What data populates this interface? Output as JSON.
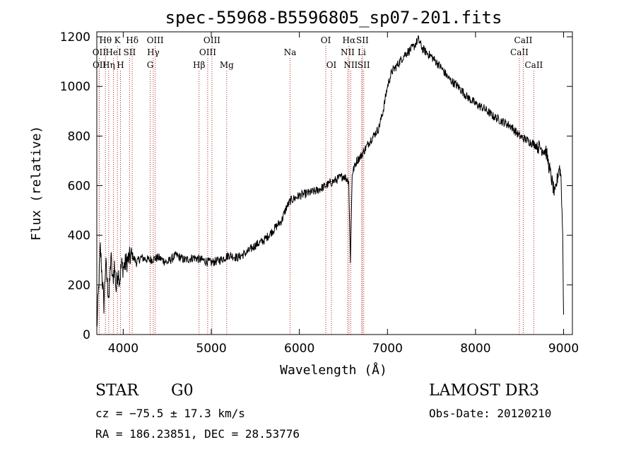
{
  "chart_data": {
    "type": "line",
    "title": "spec-55968-B5596805_sp07-201.fits",
    "xlabel": "Wavelength (Å)",
    "ylabel": "Flux (relative)",
    "xlim": [
      3700,
      9100
    ],
    "ylim": [
      0,
      1220
    ],
    "xticks": [
      4000,
      5000,
      6000,
      7000,
      8000,
      9000
    ],
    "yticks": [
      0,
      200,
      400,
      600,
      800,
      1000,
      1200
    ],
    "line_color": "#000000",
    "marker_color": "#b22222",
    "spectrum": {
      "name": "flux",
      "x": [
        3700,
        3720,
        3740,
        3760,
        3780,
        3800,
        3820,
        3840,
        3860,
        3880,
        3900,
        3920,
        3940,
        3960,
        3980,
        4000,
        4050,
        4100,
        4150,
        4200,
        4300,
        4400,
        4500,
        4600,
        4700,
        4800,
        4900,
        5000,
        5100,
        5200,
        5300,
        5400,
        5500,
        5600,
        5700,
        5800,
        5850,
        5900,
        6000,
        6100,
        6200,
        6300,
        6400,
        6500,
        6560,
        6580,
        6600,
        6650,
        6700,
        6800,
        6900,
        6950,
        7000,
        7050,
        7100,
        7200,
        7300,
        7350,
        7400,
        7500,
        7600,
        7700,
        7800,
        7900,
        8000,
        8100,
        8200,
        8300,
        8400,
        8500,
        8600,
        8700,
        8800,
        8850,
        8900,
        8950,
        8970,
        8990,
        9000
      ],
      "y": [
        20,
        180,
        350,
        230,
        120,
        290,
        200,
        150,
        320,
        210,
        280,
        180,
        260,
        220,
        280,
        270,
        300,
        320,
        290,
        310,
        300,
        310,
        290,
        320,
        300,
        310,
        300,
        290,
        300,
        320,
        310,
        330,
        360,
        380,
        420,
        460,
        510,
        540,
        560,
        570,
        580,
        600,
        620,
        640,
        620,
        300,
        650,
        700,
        720,
        780,
        830,
        900,
        1000,
        1060,
        1080,
        1130,
        1160,
        1190,
        1150,
        1120,
        1080,
        1030,
        1000,
        960,
        930,
        910,
        880,
        860,
        840,
        800,
        780,
        760,
        740,
        650,
        560,
        680,
        640,
        400,
        80
      ]
    },
    "spectral_lines": [
      {
        "label": "Hθ",
        "wavelength": 3798,
        "row": 1
      },
      {
        "label": "OII",
        "wavelength": 3727,
        "row": 2
      },
      {
        "label": "OII",
        "wavelength": 3729,
        "row": 3
      },
      {
        "label": "Hη",
        "wavelength": 3835,
        "row": 3
      },
      {
        "label": "HeI",
        "wavelength": 3889,
        "row": 2
      },
      {
        "label": "K",
        "wavelength": 3934,
        "row": 1
      },
      {
        "label": "H",
        "wavelength": 3969,
        "row": 3
      },
      {
        "label": "SII",
        "wavelength": 4072,
        "row": 2
      },
      {
        "label": "Hδ",
        "wavelength": 4102,
        "row": 1
      },
      {
        "label": "G",
        "wavelength": 4306,
        "row": 3
      },
      {
        "label": "Hγ",
        "wavelength": 4341,
        "row": 2
      },
      {
        "label": "OIII",
        "wavelength": 4363,
        "row": 1
      },
      {
        "label": "Hβ",
        "wavelength": 4861,
        "row": 3
      },
      {
        "label": "OIII",
        "wavelength": 4959,
        "row": 2
      },
      {
        "label": "OIII",
        "wavelength": 5007,
        "row": 1
      },
      {
        "label": "Mg",
        "wavelength": 5175,
        "row": 3
      },
      {
        "label": "Na",
        "wavelength": 5894,
        "row": 2
      },
      {
        "label": "OI",
        "wavelength": 6300,
        "row": 1
      },
      {
        "label": "OI",
        "wavelength": 6364,
        "row": 3
      },
      {
        "label": "NII",
        "wavelength": 6548,
        "row": 2
      },
      {
        "label": "Hα",
        "wavelength": 6563,
        "row": 1
      },
      {
        "label": "NII",
        "wavelength": 6583,
        "row": 3
      },
      {
        "label": "Li",
        "wavelength": 6708,
        "row": 2
      },
      {
        "label": "SII",
        "wavelength": 6716,
        "row": 1
      },
      {
        "label": "SII",
        "wavelength": 6731,
        "row": 3
      },
      {
        "label": "CaII",
        "wavelength": 8498,
        "row": 2
      },
      {
        "label": "CaII",
        "wavelength": 8542,
        "row": 1
      },
      {
        "label": "CaII",
        "wavelength": 8662,
        "row": 3
      }
    ]
  },
  "info": {
    "class_label": "STAR",
    "subclass": "G0",
    "redshift_text": "cz = −75.5 ± 17.3 km/s",
    "coords_text": "RA = 186.23851, DEC =  28.53776",
    "survey": "LAMOST DR3",
    "obs_date": "Obs-Date: 20120210"
  }
}
